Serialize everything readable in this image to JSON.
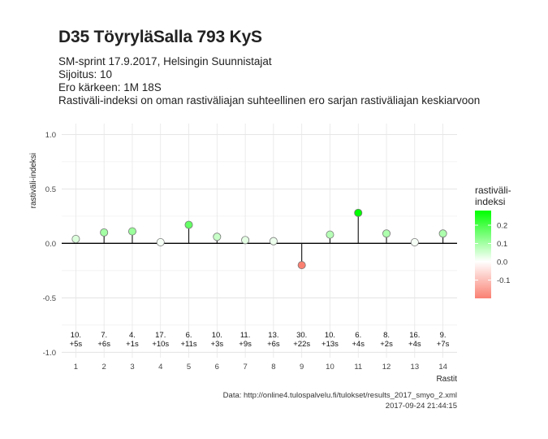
{
  "title": "D35 TöyryläSalla 793 KyS",
  "subtitle_lines": [
    "SM-sprint 17.9.2017, Helsingin Suunnistajat",
    "Sijoitus: 10",
    "Ero kärkeen: 1M 18S",
    "Rastiväli-indeksi on oman rastiväliajan suhteellinen ero sarjan rastiväliajan keskiarvoon"
  ],
  "caption": {
    "source": "Data: http://online4.tulospalvelu.fi/tulokset/results_2017_smyo_2.xml",
    "timestamp": "2017-09-24 21:44:15"
  },
  "chart_data": {
    "type": "scatter",
    "title": "D35 TöyryläSalla 793 KyS",
    "xlabel": "Rastit",
    "ylabel": "rastiväli-indeksi",
    "x": [
      1,
      2,
      3,
      4,
      5,
      6,
      7,
      8,
      9,
      10,
      11,
      12,
      13,
      14
    ],
    "xticks": [
      "1",
      "2",
      "3",
      "4",
      "5",
      "6",
      "7",
      "8",
      "9",
      "10",
      "11",
      "12",
      "13",
      "14"
    ],
    "y": [
      0.04,
      0.1,
      0.11,
      0.01,
      0.17,
      0.06,
      0.03,
      0.02,
      -0.2,
      0.08,
      0.28,
      0.09,
      0.01,
      0.09
    ],
    "yticks": [
      "1.0",
      "0.5",
      "0.0",
      "-0.5",
      "-1.0"
    ],
    "ylim": [
      -1.05,
      1.1
    ],
    "xlim": [
      0.5,
      14.5
    ],
    "grid": true,
    "labels_rank": [
      "10.",
      "7.",
      "4.",
      "17.",
      "6.",
      "10.",
      "11.",
      "13.",
      "30.",
      "10.",
      "6.",
      "8.",
      "16.",
      "9."
    ],
    "labels_diff": [
      "+5s",
      "+6s",
      "+1s",
      "+10s",
      "+11s",
      "+3s",
      "+9s",
      "+6s",
      "+22s",
      "+13s",
      "+4s",
      "+2s",
      "+4s",
      "+7s"
    ],
    "legend": {
      "title_lines": [
        "rastiväli-",
        "indeksi"
      ],
      "position": "right",
      "ticks": [
        "0.2",
        "0.1",
        "0.0",
        "-0.1"
      ],
      "tick_values": [
        0.2,
        0.1,
        0.0,
        -0.1
      ],
      "range": [
        -0.2,
        0.28
      ]
    },
    "colors": {
      "high": "#00ff00",
      "mid": "#ffffff",
      "low": "#fa8072"
    }
  }
}
